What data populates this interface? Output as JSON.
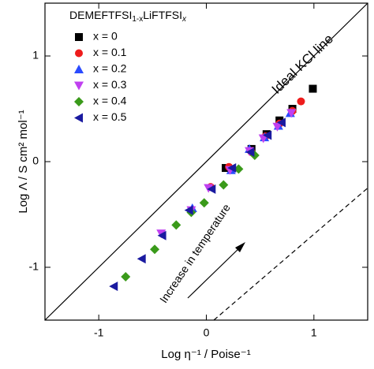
{
  "chart_data": {
    "type": "scatter",
    "xlabel": "Log η⁻¹ / Poise⁻¹",
    "ylabel": "Log Λ / S cm² mol⁻¹",
    "legend_title": [
      "DEMEFTFSI",
      "1-x",
      "LiFTFSI",
      "x"
    ],
    "legend_position": "upper left",
    "xlim": [
      -1.5,
      1.5
    ],
    "ylim": [
      -1.5,
      1.5
    ],
    "xticks": [
      -1,
      0,
      1
    ],
    "yticks": [
      -1,
      0,
      1
    ],
    "lines": [
      {
        "name": "Ideal KCl line",
        "x": [
          -1.5,
          1.5
        ],
        "y": [
          -1.5,
          1.5
        ],
        "style": "solid",
        "color": "#000000"
      },
      {
        "x": [
          0.07,
          1.5
        ],
        "y": [
          -1.5,
          -0.25
        ],
        "style": "dashed",
        "color": "#000000"
      }
    ],
    "annotation": "Increase in temperature",
    "series": [
      {
        "name": "x = 0",
        "marker": "square",
        "color": "#000000",
        "x": [
          0.18,
          0.42,
          0.56,
          0.68,
          0.8,
          0.99
        ],
        "values": [
          -0.06,
          0.12,
          0.26,
          0.39,
          0.5,
          0.69
        ]
      },
      {
        "name": "x = 0.1",
        "marker": "circle",
        "color": "#ee1c1c",
        "x": [
          0.04,
          0.21,
          0.42,
          0.55,
          0.68,
          0.8,
          0.88
        ],
        "values": [
          -0.24,
          -0.05,
          0.09,
          0.24,
          0.36,
          0.48,
          0.57
        ]
      },
      {
        "name": "x = 0.2",
        "marker": "triangle-up",
        "color": "#2a4bff",
        "x": [
          -0.13,
          0.23,
          0.4,
          0.54,
          0.67,
          0.78
        ],
        "values": [
          -0.44,
          -0.08,
          0.12,
          0.23,
          0.34,
          0.46
        ]
      },
      {
        "name": "x = 0.3",
        "marker": "triangle-down",
        "color": "#c040f0",
        "x": [
          -0.42,
          -0.14,
          0.02,
          0.22,
          0.4,
          0.53,
          0.66,
          0.79
        ],
        "values": [
          -0.68,
          -0.46,
          -0.25,
          -0.08,
          0.1,
          0.22,
          0.33,
          0.46
        ]
      },
      {
        "name": "x = 0.4",
        "marker": "diamond",
        "color": "#3a9a1a",
        "x": [
          -0.75,
          -0.48,
          -0.28,
          -0.14,
          -0.02,
          0.16,
          0.3,
          0.45
        ],
        "values": [
          -1.09,
          -0.83,
          -0.6,
          -0.48,
          -0.39,
          -0.22,
          -0.07,
          0.06
        ]
      },
      {
        "name": "x = 0.5",
        "marker": "triangle-left",
        "color": "#1a1aa0",
        "x": [
          -0.86,
          -0.6,
          -0.41,
          -0.16,
          0.05,
          0.24,
          0.41,
          0.57,
          0.7
        ],
        "values": [
          -1.18,
          -0.92,
          -0.7,
          -0.46,
          -0.26,
          -0.06,
          0.09,
          0.25,
          0.37
        ]
      }
    ]
  }
}
